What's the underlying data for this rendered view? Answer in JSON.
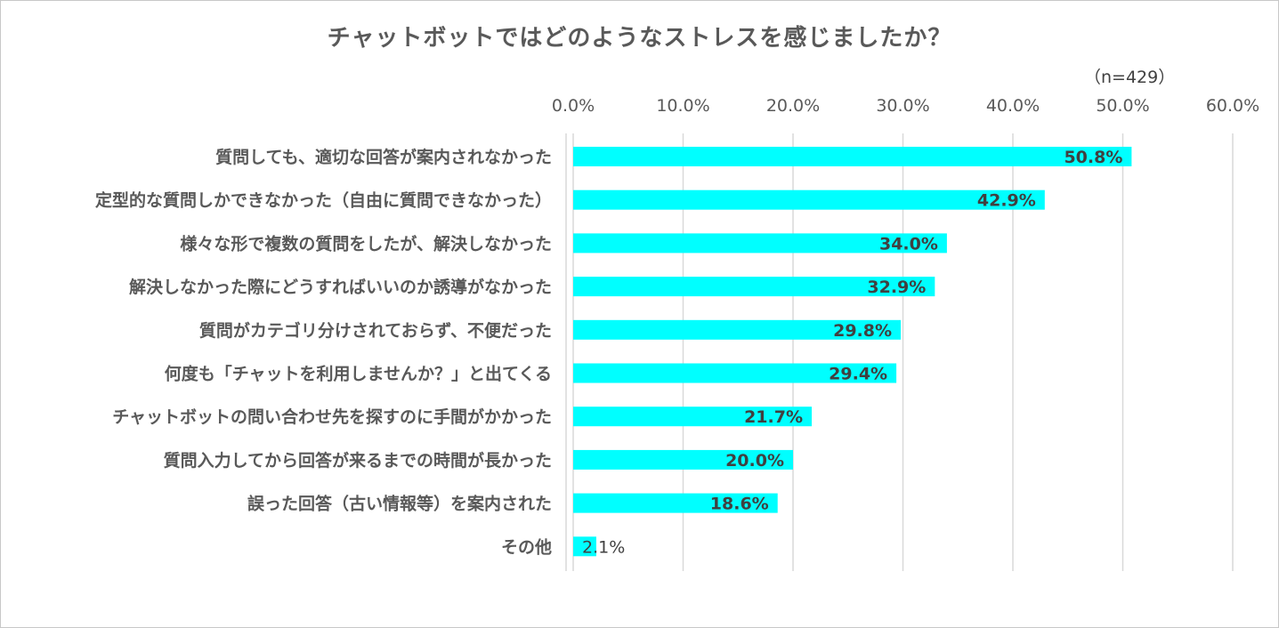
{
  "chart_data": {
    "type": "bar",
    "orientation": "horizontal",
    "title": "チャットボットではどのようなストレスを感じましたか？",
    "sample_size": "（n=429）",
    "xlim": [
      0,
      60
    ],
    "x_ticks": [
      "0.0%",
      "10.0%",
      "20.0%",
      "30.0%",
      "40.0%",
      "50.0%",
      "60.0%"
    ],
    "x_tick_values": [
      0,
      10,
      20,
      30,
      40,
      50,
      60
    ],
    "x_axis_position": "top",
    "grid": true,
    "bar_color": "#00FFFF",
    "categories": [
      "質問しても、適切な回答が案内されなかった",
      "定型的な質問しかできなかった（自由に質問できなかった）",
      "様々な形で複数の質問をしたが、解決しなかった",
      "解決しなかった際にどうすればいいのか誘導がなかった",
      "質問がカテゴリ分けされておらず、不便だった",
      "何度も「チャットを利用しませんか？」と出てくる",
      "チャットボットの問い合わせ先を探すのに手間がかかった",
      "質問入力してから回答が来るまでの時間が長かった",
      "誤った回答（古い情報等）を案内された",
      "その他"
    ],
    "values": [
      50.8,
      42.9,
      34.0,
      32.9,
      29.8,
      29.4,
      21.7,
      20.0,
      18.6,
      2.1
    ],
    "data_labels": [
      "50.8%",
      "42.9%",
      "34.0%",
      "32.9%",
      "29.8%",
      "29.4%",
      "21.7%",
      "20.0%",
      "18.6%",
      "2.1%"
    ]
  }
}
